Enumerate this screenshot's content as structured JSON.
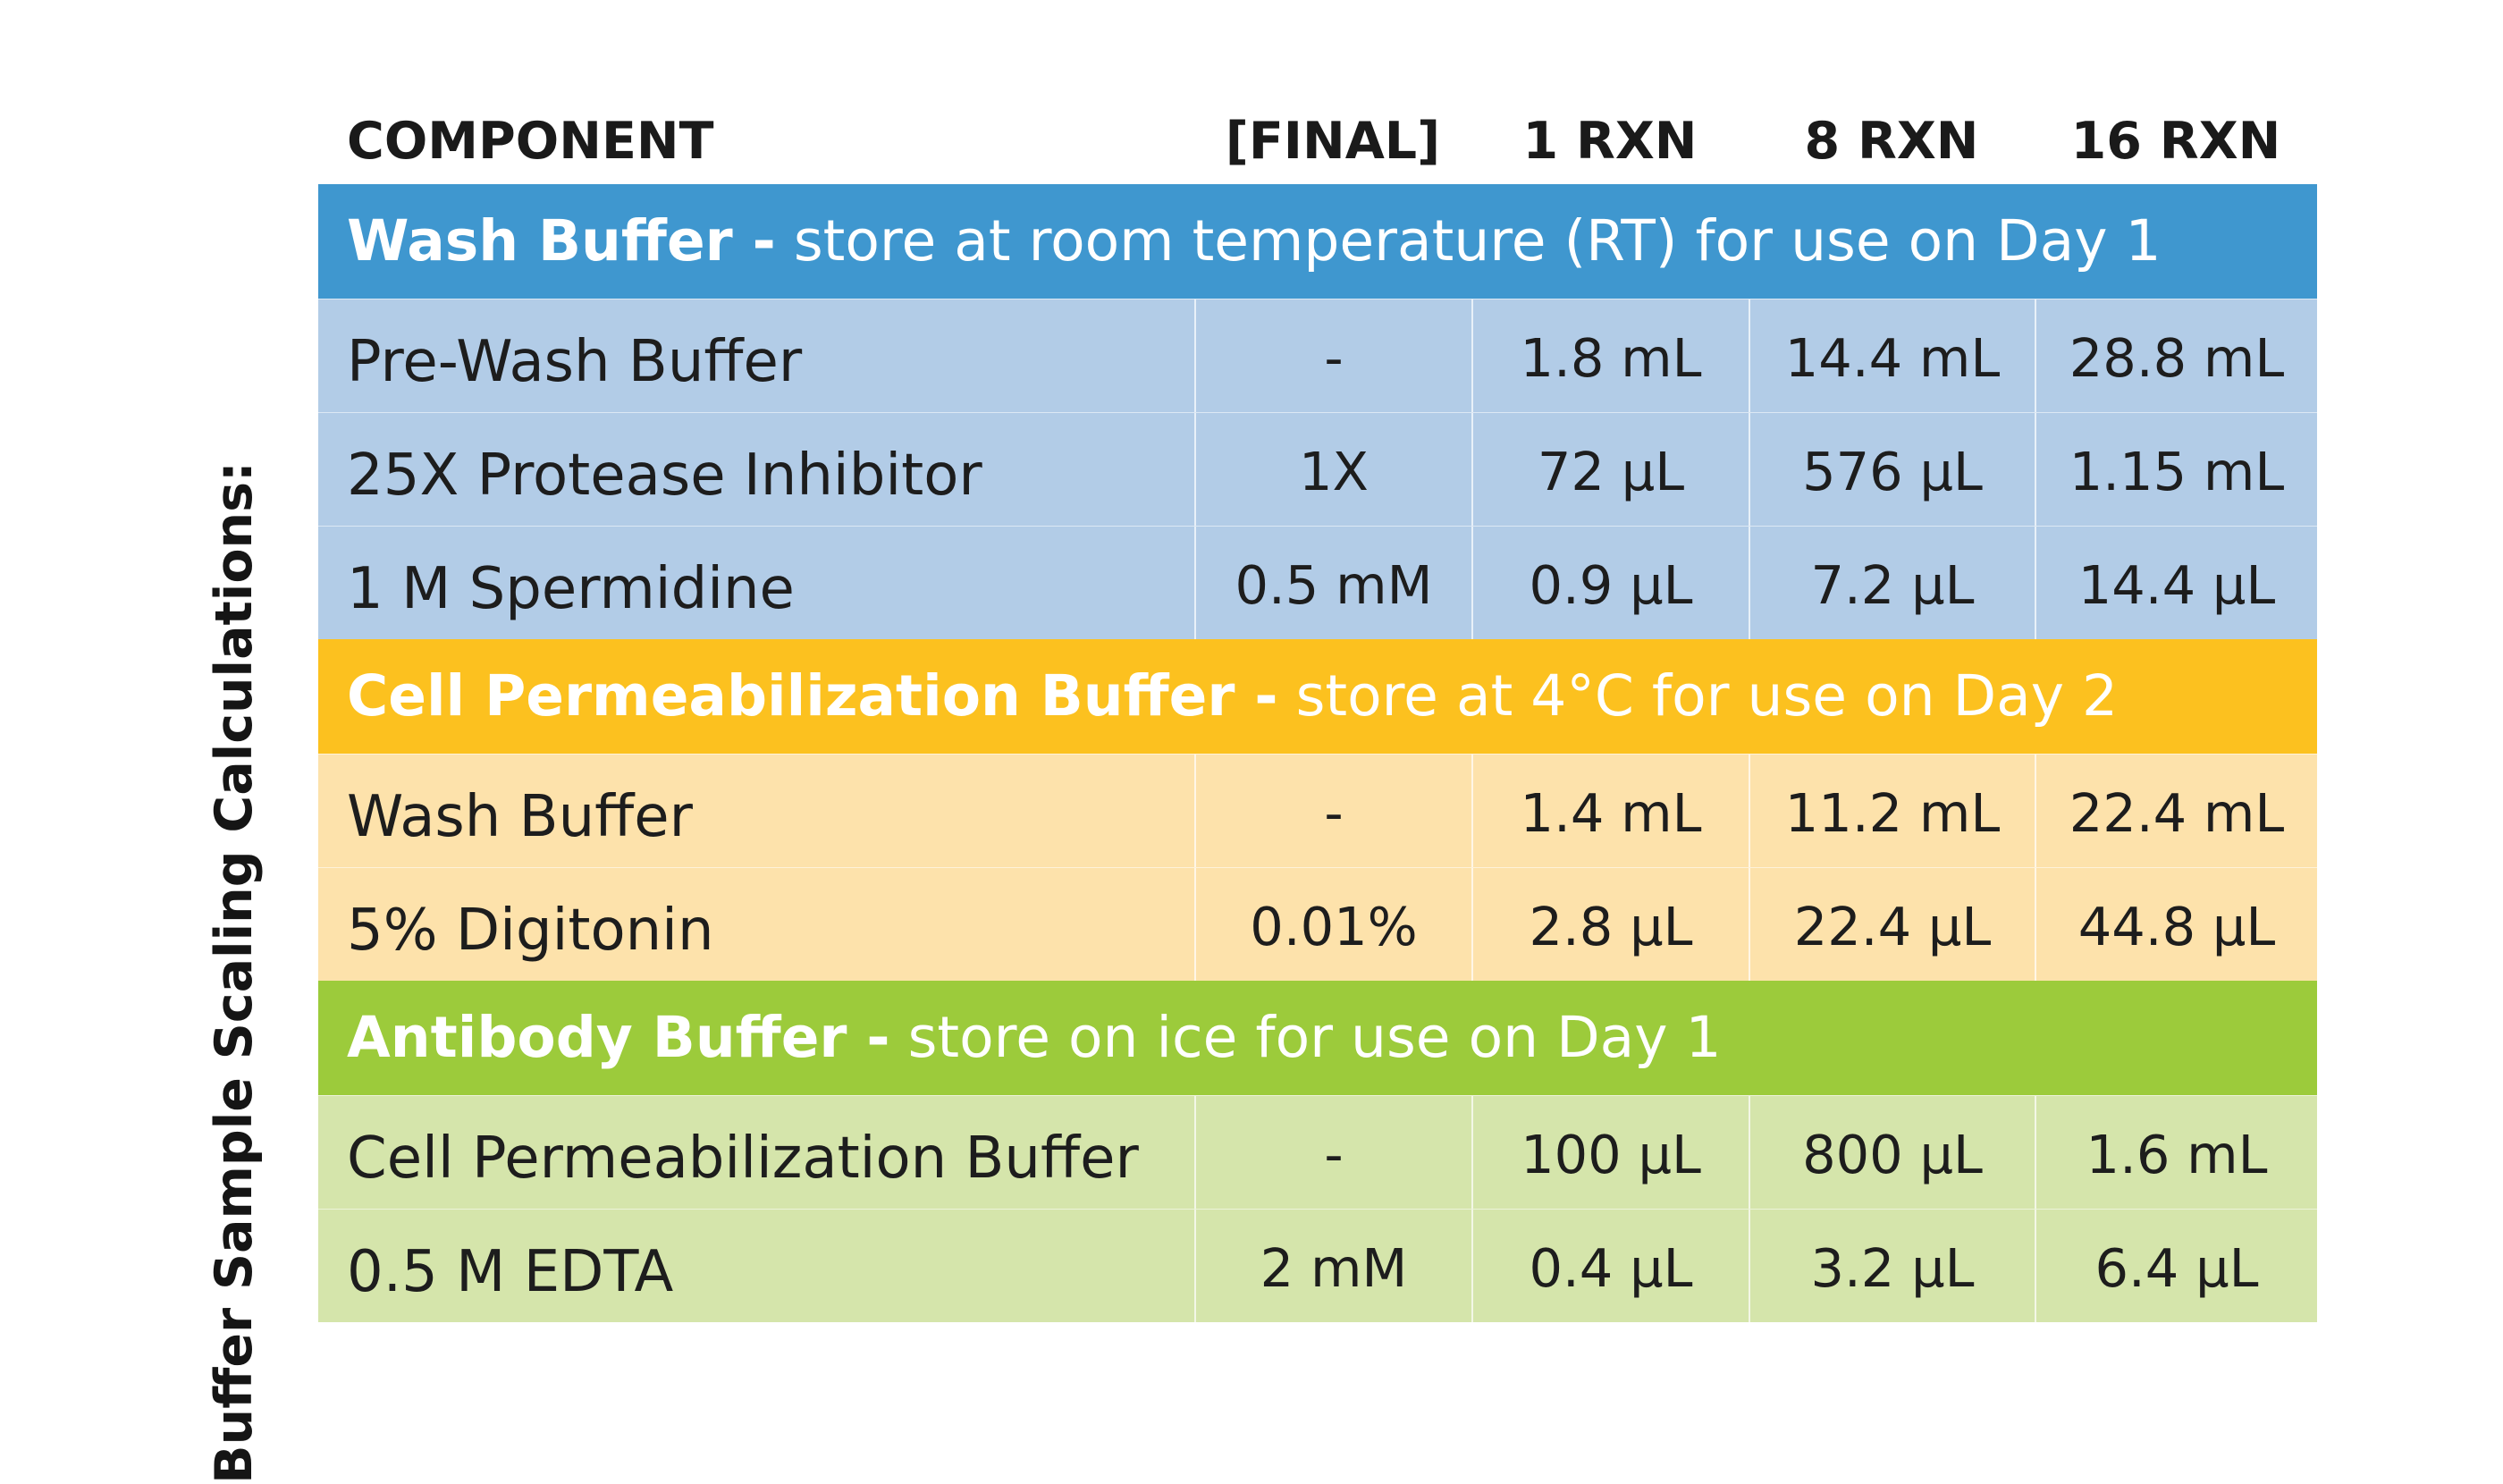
{
  "side_title": "Buffer Sample Scaling Calculations:",
  "columns": {
    "component": "COMPONENT",
    "final": "[FINAL]",
    "rxn1": "1 RXN",
    "rxn8": "8 RXN",
    "rxn16": "16 RXN"
  },
  "colors": {
    "wash_header": "#3f97cf",
    "wash_rows": "#b2cce7",
    "cell_perm_header": "#fcc11f",
    "cell_perm_rows": "#fde2ab",
    "antibody_header": "#9ccb3b",
    "antibody_rows": "#d5e5ab"
  },
  "sections": [
    {
      "name": "Wash Buffer -",
      "note": "store at room temperature (RT) for use on Day 1",
      "rows": [
        {
          "component": "Pre-Wash Buffer",
          "final": "-",
          "rxn1": "1.8 mL",
          "rxn8": "14.4 mL",
          "rxn16": "28.8 mL"
        },
        {
          "component": "25X Protease Inhibitor",
          "final": "1X",
          "rxn1": "72 µL",
          "rxn8": "576 µL",
          "rxn16": "1.15 mL"
        },
        {
          "component": "1 M Spermidine",
          "final": "0.5 mM",
          "rxn1": "0.9 µL",
          "rxn8": "7.2 µL",
          "rxn16": "14.4 µL"
        }
      ]
    },
    {
      "name": "Cell Permeabilization Buffer -",
      "note": "store at 4°C for use on Day 2",
      "rows": [
        {
          "component": "Wash Buffer",
          "final": "-",
          "rxn1": "1.4 mL",
          "rxn8": "11.2 mL",
          "rxn16": "22.4 mL"
        },
        {
          "component": "5% Digitonin",
          "final": "0.01%",
          "rxn1": "2.8 µL",
          "rxn8": "22.4 µL",
          "rxn16": "44.8 µL"
        }
      ]
    },
    {
      "name": "Antibody Buffer -",
      "note": "store on ice for use on Day 1",
      "rows": [
        {
          "component": "Cell Permeabilization Buffer",
          "final": "-",
          "rxn1": "100 µL",
          "rxn8": "800 µL",
          "rxn16": "1.6 mL"
        },
        {
          "component": "0.5 M EDTA",
          "final": "2 mM",
          "rxn1": "0.4 µL",
          "rxn8": "3.2 µL",
          "rxn16": "6.4 µL"
        }
      ]
    }
  ]
}
